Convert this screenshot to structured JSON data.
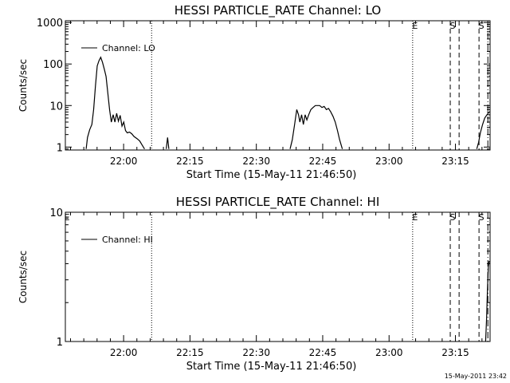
{
  "footer_date": "15-May-2011 23:42",
  "chart_data": [
    {
      "type": "line",
      "title": "HESSI PARTICLE_RATE Channel: LO",
      "xlabel": "Start Time (15-May-11 21:46:50)",
      "ylabel": "Counts/sec",
      "yscale": "log",
      "xlim": [
        0,
        96
      ],
      "ylim": [
        0.85,
        1100
      ],
      "x_unit": "minutes after 21:46:50",
      "x_ticks": [
        {
          "label": "22:00",
          "x": 13.17
        },
        {
          "label": "22:15",
          "x": 28.17
        },
        {
          "label": "22:30",
          "x": 43.17
        },
        {
          "label": "22:45",
          "x": 58.17
        },
        {
          "label": "23:00",
          "x": 73.17
        },
        {
          "label": "23:15",
          "x": 88.17
        }
      ],
      "y_ticks": [
        {
          "label": "1",
          "y": 1
        },
        {
          "label": "10",
          "y": 10
        },
        {
          "label": "100",
          "y": 100
        },
        {
          "label": "1000",
          "y": 1000
        }
      ],
      "legend": {
        "label": "Channel: LO",
        "placement": "top-left"
      },
      "markers": [
        {
          "x": 19.5,
          "style": "dotted",
          "label": ""
        },
        {
          "x": 78.5,
          "style": "dotted",
          "label": "E"
        },
        {
          "x": 87.0,
          "style": "dashed",
          "label": "S"
        },
        {
          "x": 89.0,
          "style": "dashed",
          "label": ""
        },
        {
          "x": 93.5,
          "style": "dashed",
          "label": "S"
        },
        {
          "x": 95.5,
          "style": "dashdot",
          "label": ""
        }
      ],
      "series": [
        {
          "name": "Channel: LO",
          "segments": [
            [
              [
                4.7,
                0.9
              ],
              [
                5.0,
                1.7
              ],
              [
                5.5,
                2.6
              ],
              [
                6.0,
                3.5
              ],
              [
                6.4,
                8
              ],
              [
                6.8,
                30
              ],
              [
                7.2,
                90
              ],
              [
                7.6,
                120
              ],
              [
                8.0,
                145
              ],
              [
                8.4,
                110
              ],
              [
                8.8,
                75
              ],
              [
                9.2,
                50
              ],
              [
                9.6,
                20
              ],
              [
                10.0,
                8
              ],
              [
                10.4,
                4
              ],
              [
                10.8,
                6
              ],
              [
                11.2,
                4
              ],
              [
                11.6,
                6.5
              ],
              [
                12.0,
                4.2
              ],
              [
                12.4,
                5.8
              ],
              [
                12.8,
                3.2
              ],
              [
                13.2,
                4
              ],
              [
                13.6,
                2.5
              ],
              [
                14.0,
                2.2
              ],
              [
                14.5,
                2.3
              ],
              [
                15.0,
                2.1
              ],
              [
                15.5,
                1.8
              ],
              [
                16.2,
                1.6
              ],
              [
                16.8,
                1.4
              ],
              [
                17.4,
                1.1
              ],
              [
                17.9,
                0.9
              ]
            ],
            [
              [
                22.8,
                0.9
              ],
              [
                23.1,
                1.7
              ],
              [
                23.4,
                0.9
              ]
            ],
            [
              [
                50.8,
                0.9
              ],
              [
                51.3,
                1.5
              ],
              [
                51.8,
                3.4
              ],
              [
                52.3,
                8
              ],
              [
                52.7,
                6
              ],
              [
                53.0,
                4
              ],
              [
                53.4,
                6
              ],
              [
                53.8,
                3.5
              ],
              [
                54.2,
                6
              ],
              [
                54.6,
                4.5
              ],
              [
                55.0,
                6
              ],
              [
                55.5,
                8
              ],
              [
                56.0,
                9
              ],
              [
                56.5,
                10
              ],
              [
                57.0,
                10
              ],
              [
                57.5,
                10
              ],
              [
                58.0,
                9
              ],
              [
                58.5,
                9.5
              ],
              [
                59.0,
                8
              ],
              [
                59.5,
                8.5
              ],
              [
                60.0,
                7
              ],
              [
                60.5,
                5.5
              ],
              [
                61.0,
                4
              ],
              [
                61.5,
                2.5
              ],
              [
                62.0,
                1.5
              ],
              [
                62.6,
                0.9
              ]
            ],
            [
              [
                93.0,
                0.9
              ],
              [
                93.4,
                1.3
              ],
              [
                93.8,
                2.2
              ],
              [
                94.3,
                3.5
              ],
              [
                94.8,
                5
              ],
              [
                95.3,
                6
              ],
              [
                95.8,
                7
              ]
            ]
          ]
        }
      ]
    },
    {
      "type": "line",
      "title": "HESSI PARTICLE_RATE Channel: HI",
      "xlabel": "Start Time (15-May-11 21:46:50)",
      "ylabel": "Counts/sec",
      "yscale": "log",
      "xlim": [
        0,
        96
      ],
      "ylim": [
        1,
        10
      ],
      "x_unit": "minutes after 21:46:50",
      "x_ticks": [
        {
          "label": "22:00",
          "x": 13.17
        },
        {
          "label": "22:15",
          "x": 28.17
        },
        {
          "label": "22:30",
          "x": 43.17
        },
        {
          "label": "22:45",
          "x": 58.17
        },
        {
          "label": "23:00",
          "x": 73.17
        },
        {
          "label": "23:15",
          "x": 88.17
        }
      ],
      "y_ticks": [
        {
          "label": "1",
          "y": 1
        },
        {
          "label": "10",
          "y": 10
        }
      ],
      "legend": {
        "label": "Channel: HI",
        "placement": "top-left"
      },
      "markers": [
        {
          "x": 0,
          "style": "none",
          "label": "E"
        },
        {
          "x": 19.5,
          "style": "dotted",
          "label": ""
        },
        {
          "x": 78.5,
          "style": "dotted",
          "label": "E"
        },
        {
          "x": 87.0,
          "style": "dashed",
          "label": "S"
        },
        {
          "x": 89.0,
          "style": "dashed",
          "label": ""
        },
        {
          "x": 93.5,
          "style": "dashed",
          "label": "S"
        },
        {
          "x": 95.5,
          "style": "dashdot",
          "label": ""
        }
      ],
      "series": [
        {
          "name": "Channel: HI",
          "segments": [
            [
              [
                95.0,
                1.0
              ],
              [
                95.2,
                1.5
              ],
              [
                95.4,
                2.5
              ],
              [
                95.6,
                3.8
              ],
              [
                95.8,
                4.2
              ]
            ]
          ]
        }
      ]
    }
  ]
}
